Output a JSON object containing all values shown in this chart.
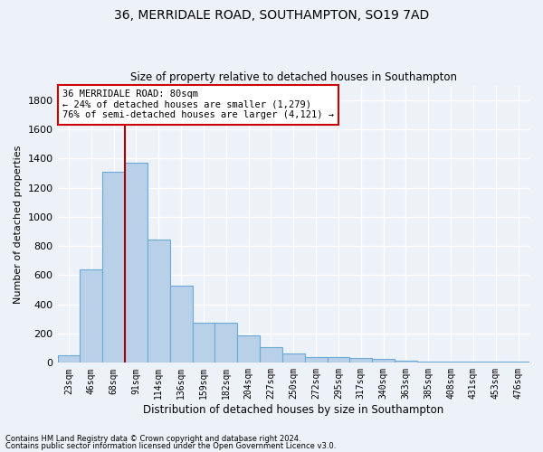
{
  "title1": "36, MERRIDALE ROAD, SOUTHAMPTON, SO19 7AD",
  "title2": "Size of property relative to detached houses in Southampton",
  "xlabel": "Distribution of detached houses by size in Southampton",
  "ylabel": "Number of detached properties",
  "bar_color": "#b8d0e8",
  "bar_edge_color": "#6aaad4",
  "background_color": "#edf2f9",
  "grid_color": "#ffffff",
  "categories": [
    "23sqm",
    "46sqm",
    "68sqm",
    "91sqm",
    "114sqm",
    "136sqm",
    "159sqm",
    "182sqm",
    "204sqm",
    "227sqm",
    "250sqm",
    "272sqm",
    "295sqm",
    "317sqm",
    "340sqm",
    "363sqm",
    "385sqm",
    "408sqm",
    "431sqm",
    "453sqm",
    "476sqm"
  ],
  "values": [
    50,
    640,
    1310,
    1370,
    845,
    530,
    275,
    275,
    185,
    105,
    65,
    40,
    40,
    30,
    25,
    15,
    10,
    10,
    10,
    10,
    10
  ],
  "ylim": [
    0,
    1900
  ],
  "yticks": [
    0,
    200,
    400,
    600,
    800,
    1000,
    1200,
    1400,
    1600,
    1800
  ],
  "vline_pos": 2.5,
  "vline_color": "#aa0000",
  "annotation_title": "36 MERRIDALE ROAD: 80sqm",
  "annotation_line1": "← 24% of detached houses are smaller (1,279)",
  "annotation_line2": "76% of semi-detached houses are larger (4,121) →",
  "annotation_box_color": "#ffffff",
  "annotation_box_edge": "#cc0000",
  "footnote1": "Contains HM Land Registry data © Crown copyright and database right 2024.",
  "footnote2": "Contains public sector information licensed under the Open Government Licence v3.0."
}
